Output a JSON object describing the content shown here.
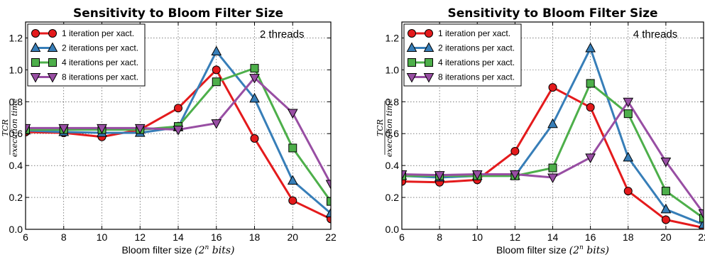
{
  "chart_data": [
    {
      "type": "line",
      "title": "Sensitivity to Bloom Filter Size",
      "xlabel": "Bloom filter size",
      "xlabel_math": "(2^n bits)",
      "ylabel_num": "TCR",
      "ylabel_den": "execution time",
      "annotation": "2 threads",
      "x": [
        6,
        8,
        10,
        12,
        14,
        16,
        18,
        20,
        22
      ],
      "xticks": [
        "6",
        "8",
        "10",
        "12",
        "14",
        "16",
        "18",
        "20",
        "22"
      ],
      "yticks": [
        "0.0",
        "0.2",
        "0.4",
        "0.6",
        "0.8",
        "1.0",
        "1.2"
      ],
      "xlim": [
        6,
        22
      ],
      "ylim": [
        0,
        1.3
      ],
      "grid": true,
      "legend_position": "top-left",
      "series": [
        {
          "name": "1 iteration per xact.",
          "color": "#e41a1c",
          "marker": "circle",
          "values": [
            0.61,
            0.605,
            0.58,
            0.625,
            0.76,
            1.0,
            0.57,
            0.18,
            0.065
          ]
        },
        {
          "name": "2 iterations per xact.",
          "color": "#377eb8",
          "marker": "triangle-up",
          "values": [
            0.62,
            0.61,
            0.605,
            0.605,
            0.64,
            1.115,
            0.82,
            0.305,
            0.1
          ]
        },
        {
          "name": "4 iterations per xact.",
          "color": "#4daf4a",
          "marker": "square",
          "values": [
            0.625,
            0.625,
            0.625,
            0.625,
            0.645,
            0.925,
            1.01,
            0.51,
            0.175
          ]
        },
        {
          "name": "8 iterations per xact.",
          "color": "#984ea3",
          "marker": "triangle-down",
          "values": [
            0.635,
            0.635,
            0.635,
            0.635,
            0.625,
            0.665,
            0.95,
            0.73,
            0.285
          ]
        }
      ]
    },
    {
      "type": "line",
      "title": "Sensitivity to Bloom Filter Size",
      "xlabel": "Bloom filter size",
      "xlabel_math": "(2^n bits)",
      "ylabel_num": "TCR",
      "ylabel_den": "execution time",
      "annotation": "4 threads",
      "x": [
        6,
        8,
        10,
        12,
        14,
        16,
        18,
        20,
        22
      ],
      "xticks": [
        "6",
        "8",
        "10",
        "12",
        "14",
        "16",
        "18",
        "20",
        "22"
      ],
      "yticks": [
        "0.0",
        "0.2",
        "0.4",
        "0.6",
        "0.8",
        "1.0",
        "1.2"
      ],
      "xlim": [
        6,
        22
      ],
      "ylim": [
        0,
        1.3
      ],
      "grid": true,
      "legend_position": "top-left",
      "series": [
        {
          "name": "1 iteration per xact.",
          "color": "#e41a1c",
          "marker": "circle",
          "values": [
            0.3,
            0.295,
            0.31,
            0.49,
            0.89,
            0.765,
            0.24,
            0.06,
            0.01
          ]
        },
        {
          "name": "2 iterations per xact.",
          "color": "#377eb8",
          "marker": "triangle-up",
          "values": [
            0.335,
            0.325,
            0.335,
            0.335,
            0.66,
            1.135,
            0.45,
            0.125,
            0.03
          ]
        },
        {
          "name": "4 iterations per xact.",
          "color": "#4daf4a",
          "marker": "square",
          "values": [
            0.335,
            0.335,
            0.335,
            0.335,
            0.385,
            0.915,
            0.725,
            0.24,
            0.07
          ]
        },
        {
          "name": "8 iterations per xact.",
          "color": "#984ea3",
          "marker": "triangle-down",
          "values": [
            0.345,
            0.34,
            0.345,
            0.345,
            0.325,
            0.45,
            0.8,
            0.425,
            0.1
          ]
        }
      ]
    }
  ]
}
